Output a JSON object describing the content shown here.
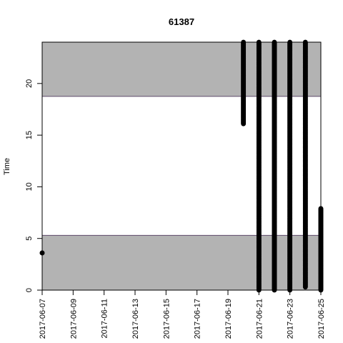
{
  "chart_data": {
    "type": "scatter",
    "title": "61387",
    "xlabel": "",
    "ylabel": "Time",
    "xlim": [
      "2017-06-07",
      "2017-06-25"
    ],
    "ylim": [
      0,
      24
    ],
    "x_ticks": [
      "2017-06-07",
      "2017-06-09",
      "2017-06-11",
      "2017-06-13",
      "2017-06-15",
      "2017-06-17",
      "2017-06-19",
      "2017-06-21",
      "2017-06-23",
      "2017-06-25"
    ],
    "y_ticks": [
      0,
      5,
      10,
      15,
      20
    ],
    "grid": false,
    "legend": "none",
    "bands": [
      {
        "y0": 0,
        "y1": 5.3,
        "color": "#b3b3b3"
      },
      {
        "y0": 18.75,
        "y1": 24,
        "color": "#b3b3b3"
      }
    ],
    "band_line_color": "#5e4a6a",
    "point_color": "#000000",
    "point_segments": [
      {
        "date": "2017-06-07",
        "y_start": 3.6,
        "y_end": 3.6
      },
      {
        "date": "2017-06-20",
        "y_start": 16.1,
        "y_end": 24
      },
      {
        "date": "2017-06-21",
        "y_start": 0,
        "y_end": 24
      },
      {
        "date": "2017-06-22",
        "y_start": 0,
        "y_end": 24
      },
      {
        "date": "2017-06-23",
        "y_start": 0,
        "y_end": 24
      },
      {
        "date": "2017-06-24",
        "y_start": 0.3,
        "y_end": 24
      },
      {
        "date": "2017-06-25",
        "y_start": 0,
        "y_end": 7.9
      }
    ]
  }
}
